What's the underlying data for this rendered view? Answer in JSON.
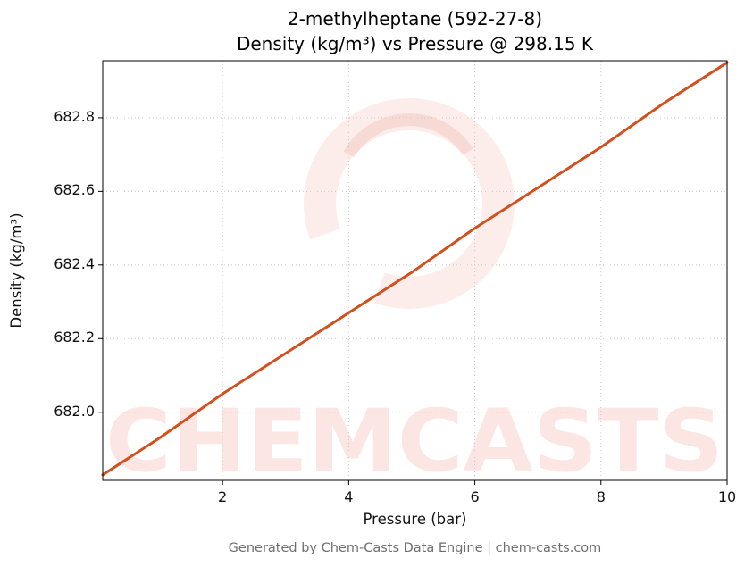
{
  "page": {
    "title_line1": "2-methylheptane (592-27-8)",
    "title_line2": "Density (kg/m³) vs Pressure @ 298.15 K",
    "footer": "Generated by Chem-Casts Data Engine | chem-casts.com"
  },
  "watermark": {
    "text": "CHEMCASTS",
    "color": "#e2503c"
  },
  "chart_data": {
    "type": "line",
    "title": "2-methylheptane (592-27-8)",
    "subtitle": "Density (kg/m³) vs Pressure @ 298.15 K",
    "xlabel": "Pressure (bar)",
    "ylabel": "Density (kg/m³)",
    "xlim": [
      0.1,
      10
    ],
    "ylim": [
      681.815,
      682.955
    ],
    "xticks": [
      2,
      4,
      6,
      8,
      10
    ],
    "xtick_labels": [
      "2",
      "4",
      "6",
      "8",
      "10"
    ],
    "yticks": [
      682.0,
      682.2,
      682.4,
      682.6,
      682.8
    ],
    "ytick_labels": [
      "682.0",
      "682.2",
      "682.4",
      "682.6",
      "682.8"
    ],
    "grid": true,
    "legend": "none",
    "line_color": "#d2501e",
    "series": [
      {
        "name": "Density",
        "x": [
          0.1,
          1,
          2,
          3,
          4,
          5,
          6,
          7,
          8,
          9,
          10
        ],
        "y": [
          681.83,
          681.93,
          682.05,
          682.16,
          682.27,
          682.38,
          682.5,
          682.61,
          682.72,
          682.84,
          682.95
        ]
      }
    ]
  }
}
